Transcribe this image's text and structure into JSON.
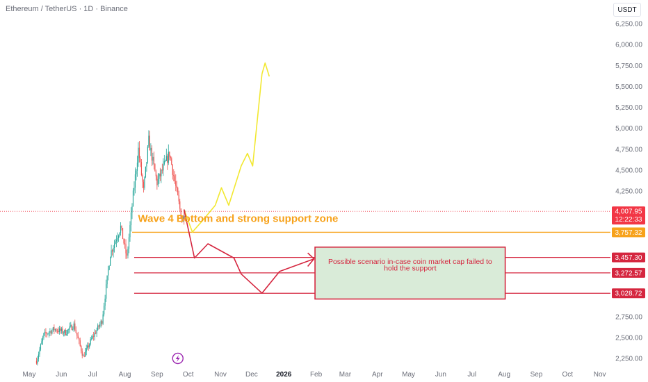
{
  "header": {
    "title": "Ethereum / TetherUS · 1D · Binance"
  },
  "currency": {
    "label": "USDT"
  },
  "colors": {
    "up": "#26a69a",
    "down": "#ef5350",
    "yellow": "#f2e830",
    "red": "#d5263f",
    "orange": "#f7a21b",
    "zone_fill": "#d9ebd8",
    "current": "#f23645",
    "axis_text": "#6a6d78"
  },
  "icons": {
    "marker": "lightning-icon"
  },
  "chart_data": {
    "type": "candlestick",
    "y_ticks": [
      "6,250.00",
      "6,000.00",
      "5,750.00",
      "5,500.00",
      "5,250.00",
      "5,000.00",
      "4,750.00",
      "4,500.00",
      "4,250.00",
      "2,750.00",
      "2,500.00",
      "2,250.00"
    ],
    "x_ticks": [
      {
        "label": "May",
        "bold": false
      },
      {
        "label": "Jun",
        "bold": false
      },
      {
        "label": "Jul",
        "bold": false
      },
      {
        "label": "Aug",
        "bold": false
      },
      {
        "label": "Sep",
        "bold": false
      },
      {
        "label": "Oct",
        "bold": false
      },
      {
        "label": "Nov",
        "bold": false
      },
      {
        "label": "Dec",
        "bold": false
      },
      {
        "label": "2026",
        "bold": true
      },
      {
        "label": "Feb",
        "bold": false
      },
      {
        "label": "Mar",
        "bold": false
      },
      {
        "label": "Apr",
        "bold": false
      },
      {
        "label": "May",
        "bold": false
      },
      {
        "label": "Jun",
        "bold": false
      },
      {
        "label": "Jul",
        "bold": false
      },
      {
        "label": "Aug",
        "bold": false
      },
      {
        "label": "Sep",
        "bold": false
      },
      {
        "label": "Oct",
        "bold": false
      },
      {
        "label": "Nov",
        "bold": false
      }
    ],
    "price_labels": [
      {
        "value": 4007.95,
        "text": "4,007.95",
        "subtext": "12:22:33",
        "color": "#f23645"
      },
      {
        "value": 3757.32,
        "text": "3,757.32",
        "color": "#f7a21b"
      },
      {
        "value": 3457.3,
        "text": "3,457.30",
        "color": "#d5263f"
      },
      {
        "value": 3272.57,
        "text": "3,272.57",
        "color": "#d5263f"
      },
      {
        "value": 3028.72,
        "text": "3,028.72",
        "color": "#d5263f"
      }
    ],
    "anchors": [
      {
        "x": "2025-05-08",
        "price": 2220
      },
      {
        "x": "2025-05-15",
        "price": 2530
      },
      {
        "x": "2025-05-25",
        "price": 2600
      },
      {
        "x": "2025-06-05",
        "price": 2560
      },
      {
        "x": "2025-06-13",
        "price": 2650
      },
      {
        "x": "2025-06-22",
        "price": 2270
      },
      {
        "x": "2025-06-30",
        "price": 2480
      },
      {
        "x": "2025-07-10",
        "price": 2700
      },
      {
        "x": "2025-07-18",
        "price": 3500
      },
      {
        "x": "2025-07-28",
        "price": 3820
      },
      {
        "x": "2025-08-03",
        "price": 3450
      },
      {
        "x": "2025-08-09",
        "price": 4200
      },
      {
        "x": "2025-08-14",
        "price": 4750
      },
      {
        "x": "2025-08-19",
        "price": 4250
      },
      {
        "x": "2025-08-24",
        "price": 4850
      },
      {
        "x": "2025-09-01",
        "price": 4350
      },
      {
        "x": "2025-09-13",
        "price": 4700
      },
      {
        "x": "2025-09-25",
        "price": 3900
      },
      {
        "x": "2025-09-28",
        "price": 4008
      }
    ],
    "projections": {
      "bullish": {
        "color": "#f2e830",
        "points": [
          {
            "x": "2025-09-27",
            "price": 4030
          },
          {
            "x": "2025-10-05",
            "price": 3760
          },
          {
            "x": "2025-10-15",
            "price": 3900
          },
          {
            "x": "2025-10-27",
            "price": 4080
          },
          {
            "x": "2025-11-02",
            "price": 4290
          },
          {
            "x": "2025-11-09",
            "price": 4080
          },
          {
            "x": "2025-11-21",
            "price": 4550
          },
          {
            "x": "2025-11-27",
            "price": 4700
          },
          {
            "x": "2025-12-02",
            "price": 4550
          },
          {
            "x": "2025-12-11",
            "price": 5650
          }
        ],
        "arrow_tip": {
          "x": "2025-12-14",
          "price": 5780
        },
        "arrow_end": {
          "x": "2025-12-18",
          "price": 5620
        }
      },
      "bearish": {
        "color": "#d5263f",
        "points": [
          {
            "x": "2025-09-27",
            "price": 4030
          },
          {
            "x": "2025-10-07",
            "price": 3450
          },
          {
            "x": "2025-10-20",
            "price": 3620
          },
          {
            "x": "2025-11-14",
            "price": 3450
          },
          {
            "x": "2025-11-21",
            "price": 3260
          },
          {
            "x": "2025-12-11",
            "price": 3030
          },
          {
            "x": "2025-12-28",
            "price": 3290
          },
          {
            "x": "2026-01-30",
            "price": 3440
          }
        ],
        "arrow_tip": {
          "x": "2026-01-30",
          "price": 3440
        },
        "arrow_wing1": {
          "x": "2026-01-24",
          "price": 3510
        },
        "arrow_wing2": {
          "x": "2026-01-24",
          "price": 3350
        }
      }
    },
    "support_line": {
      "price": 3757.32,
      "from": "2025-08-08",
      "to": "2026-12-03",
      "color": "#f7a21b"
    },
    "level_lines": [
      {
        "price": 3457.3,
        "from": "2025-08-10",
        "to": "2026-12-03"
      },
      {
        "price": 3272.57,
        "from": "2025-08-10",
        "to": "2026-12-03"
      },
      {
        "price": 3028.72,
        "from": "2025-08-10",
        "to": "2026-12-03"
      }
    ],
    "zone": {
      "x_from": "2026-01-31",
      "x_to": "2026-08-02",
      "price_top": 3580,
      "price_bottom": 2960
    },
    "annotations": {
      "support": "Wave 4 Bottom and strong support zone",
      "scenario_line1": "Possible scenario in-case coin market cap failed to",
      "scenario_line2": "hold the support"
    },
    "current_price": 4007.95
  }
}
